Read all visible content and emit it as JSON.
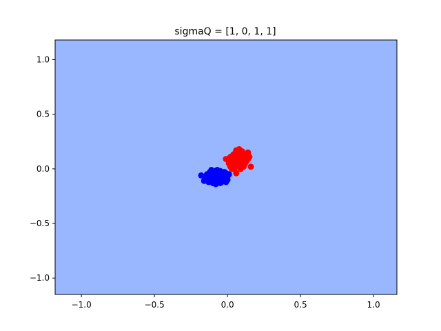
{
  "chart_data": {
    "type": "scatter",
    "title": "sigmaQ = [1, 0, 1, 1]",
    "xlabel": "",
    "ylabel": "",
    "xlim": [
      -1.18,
      1.16
    ],
    "ylim": [
      -1.15,
      1.18
    ],
    "xticks": [
      -1.0,
      -0.5,
      0.0,
      0.5,
      1.0
    ],
    "xtick_labels": [
      "−1.0",
      "−0.5",
      "0.0",
      "0.5",
      "1.0"
    ],
    "yticks": [
      -1.0,
      -0.5,
      0.0,
      0.5,
      1.0
    ],
    "ytick_labels": [
      "−1.0",
      "−0.5",
      "0.0",
      "0.5",
      "1.0"
    ],
    "grid": false,
    "legend": "none",
    "background_color": "#99b7ff",
    "series": [
      {
        "color": "#0000ff",
        "points": [
          [
            -0.18,
            -0.06
          ],
          [
            -0.16,
            -0.11
          ],
          [
            -0.14,
            -0.05
          ],
          [
            -0.14,
            -0.09
          ],
          [
            -0.13,
            -0.12
          ],
          [
            -0.12,
            -0.03
          ],
          [
            -0.12,
            -0.08
          ],
          [
            -0.11,
            -0.01
          ],
          [
            -0.11,
            -0.06
          ],
          [
            -0.11,
            -0.1
          ],
          [
            -0.1,
            -0.13
          ],
          [
            -0.1,
            -0.04
          ],
          [
            -0.09,
            -0.02
          ],
          [
            -0.09,
            -0.08
          ],
          [
            -0.09,
            -0.11
          ],
          [
            -0.08,
            -0.05
          ],
          [
            -0.08,
            -0.14
          ],
          [
            -0.07,
            -0.01
          ],
          [
            -0.07,
            -0.09
          ],
          [
            -0.07,
            -0.12
          ],
          [
            -0.06,
            -0.04
          ],
          [
            -0.06,
            -0.07
          ],
          [
            -0.05,
            -0.02
          ],
          [
            -0.05,
            -0.1
          ],
          [
            -0.05,
            -0.13
          ],
          [
            -0.04,
            -0.05
          ],
          [
            -0.04,
            -0.08
          ],
          [
            -0.03,
            -0.03
          ],
          [
            -0.03,
            -0.11
          ],
          [
            -0.02,
            -0.06
          ],
          [
            -0.02,
            -0.09
          ],
          [
            -0.01,
            -0.04
          ],
          [
            -0.01,
            -0.12
          ],
          [
            0.0,
            -0.07
          ],
          [
            0.0,
            -0.1
          ],
          [
            0.01,
            -0.05
          ],
          [
            -0.13,
            -0.07
          ],
          [
            -0.1,
            -0.07
          ],
          [
            -0.08,
            -0.03
          ],
          [
            -0.06,
            -0.11
          ],
          [
            -0.04,
            -0.12
          ],
          [
            -0.03,
            -0.07
          ],
          [
            -0.12,
            -0.11
          ],
          [
            -0.15,
            -0.08
          ],
          [
            -0.02,
            -0.03
          ]
        ]
      },
      {
        "color": "#ff0000",
        "points": [
          [
            -0.01,
            0.09
          ],
          [
            0.01,
            0.05
          ],
          [
            0.02,
            0.11
          ],
          [
            0.02,
            0.02
          ],
          [
            0.03,
            0.07
          ],
          [
            0.04,
            0.13
          ],
          [
            0.04,
            0.04
          ],
          [
            0.05,
            0.09
          ],
          [
            0.05,
            0.01
          ],
          [
            0.06,
            0.17
          ],
          [
            0.06,
            0.06
          ],
          [
            0.07,
            0.11
          ],
          [
            0.07,
            0.03
          ],
          [
            0.08,
            0.15
          ],
          [
            0.08,
            0.08
          ],
          [
            0.09,
            0.0
          ],
          [
            0.09,
            0.12
          ],
          [
            0.1,
            0.05
          ],
          [
            0.1,
            0.16
          ],
          [
            0.11,
            0.09
          ],
          [
            0.11,
            0.02
          ],
          [
            0.12,
            0.13
          ],
          [
            0.13,
            0.07
          ],
          [
            0.13,
            0.1
          ],
          [
            0.14,
            0.15
          ],
          [
            0.15,
            0.11
          ],
          [
            0.16,
            0.02
          ],
          [
            0.06,
            -0.04
          ],
          [
            0.03,
            0.0
          ],
          [
            0.08,
            0.04
          ],
          [
            0.1,
            0.11
          ],
          [
            0.12,
            0.05
          ],
          [
            0.05,
            0.14
          ],
          [
            0.07,
            0.07
          ],
          [
            0.09,
            0.1
          ],
          [
            0.04,
            0.08
          ],
          [
            0.11,
            0.13
          ],
          [
            0.14,
            0.09
          ],
          [
            0.02,
            0.06
          ],
          [
            0.08,
            0.18
          ]
        ]
      }
    ]
  }
}
